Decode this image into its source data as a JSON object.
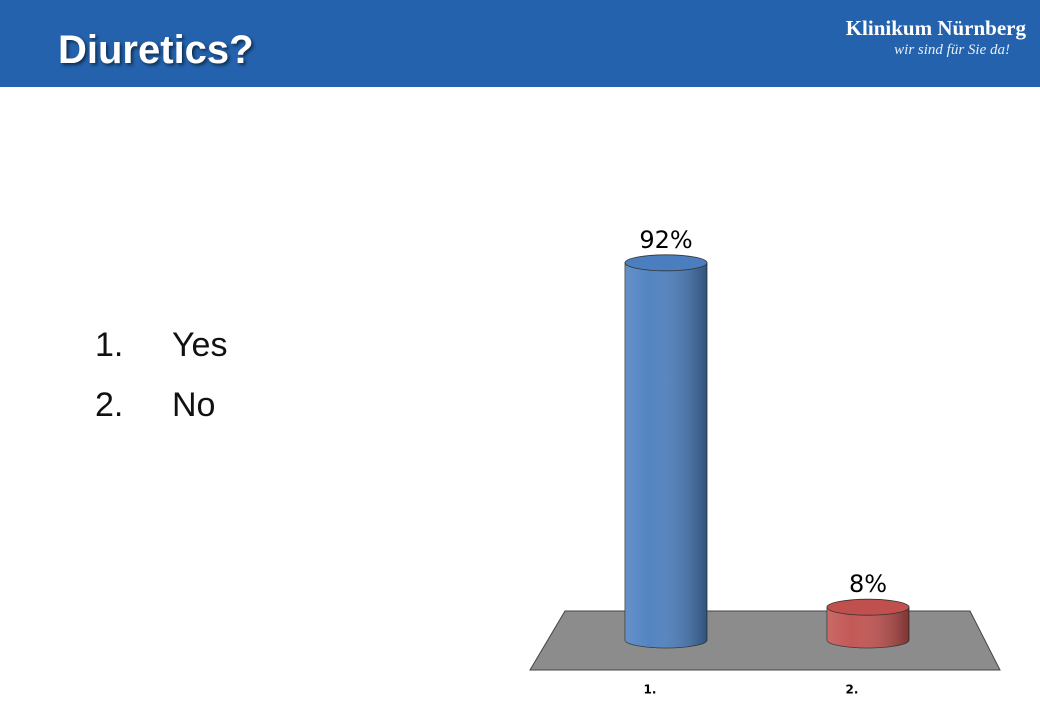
{
  "header": {
    "title": "Diuretics?",
    "logo": "Klinikum Nürnberg",
    "tagline": "wir sind für Sie da!"
  },
  "list": [
    {
      "number": "1.",
      "text": "Yes"
    },
    {
      "number": "2.",
      "text": "No"
    }
  ],
  "chart_data": {
    "type": "bar",
    "style": "cylinder",
    "categories": [
      "1.",
      "2."
    ],
    "values": [
      92,
      8
    ],
    "value_labels": [
      "92%",
      "8%"
    ],
    "colors": [
      "#4a7ebf",
      "#c0504d"
    ],
    "floor_color": "#8c8c8c"
  }
}
